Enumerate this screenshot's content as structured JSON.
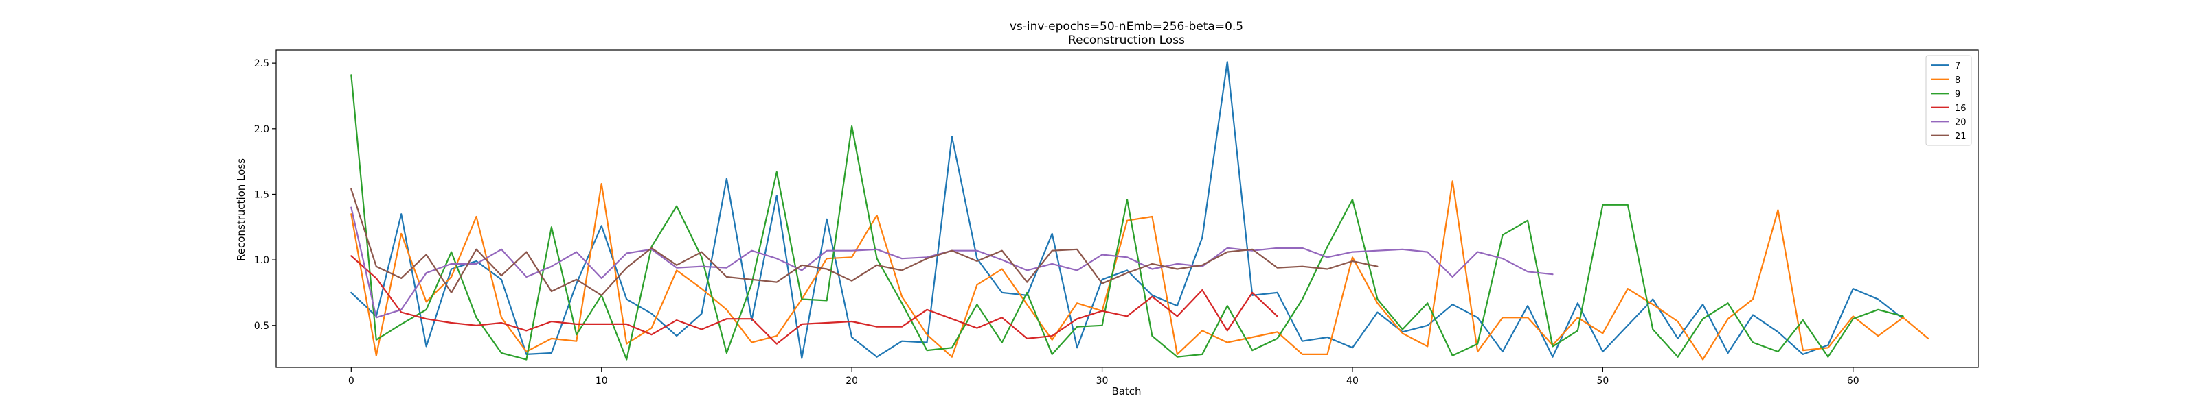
{
  "chart_data": {
    "type": "line",
    "title": "vs-inv-epochs=50-nEmb=256-beta=0.5",
    "subtitle": "Reconstruction Loss",
    "xlabel": "Batch",
    "ylabel": "Reconstruction Loss",
    "xlim": [
      -3,
      65
    ],
    "ylim": [
      0.18,
      2.6
    ],
    "xticks": [
      0,
      10,
      20,
      30,
      40,
      50,
      60
    ],
    "yticks": [
      0.5,
      1.0,
      1.5,
      2.0,
      2.5
    ],
    "ytick_labels": [
      "0.5",
      "1.0",
      "1.5",
      "2.0",
      "2.5"
    ],
    "grid": false,
    "legend_position": "upper right",
    "series": [
      {
        "name": "7",
        "color": "#1f77b4",
        "values": [
          0.75,
          0.57,
          1.35,
          0.34,
          0.93,
          0.99,
          0.85,
          0.28,
          0.29,
          0.82,
          1.26,
          0.7,
          0.59,
          0.42,
          0.59,
          1.62,
          0.54,
          1.49,
          0.25,
          1.31,
          0.41,
          0.26,
          0.38,
          0.37,
          1.94,
          1.01,
          0.75,
          0.73,
          1.2,
          0.33,
          0.85,
          0.92,
          0.73,
          0.65,
          1.17,
          2.51,
          0.73,
          0.75,
          0.38,
          0.41,
          0.33,
          0.6,
          0.45,
          0.5,
          0.66,
          0.56,
          0.3,
          0.65,
          0.26,
          0.67,
          0.3,
          0.5,
          0.7,
          0.4,
          0.66,
          0.29,
          0.58,
          0.45,
          0.28,
          0.35,
          0.78,
          0.7,
          0.55
        ]
      },
      {
        "name": "8",
        "color": "#ff7f0e",
        "values": [
          1.35,
          0.27,
          1.2,
          0.68,
          0.87,
          1.33,
          0.56,
          0.3,
          0.4,
          0.38,
          1.58,
          0.36,
          0.48,
          0.92,
          0.78,
          0.62,
          0.37,
          0.42,
          0.7,
          1.01,
          1.02,
          1.34,
          0.72,
          0.43,
          0.26,
          0.81,
          0.93,
          0.66,
          0.39,
          0.67,
          0.61,
          1.3,
          1.33,
          0.28,
          0.46,
          0.37,
          0.41,
          0.45,
          0.28,
          0.28,
          1.02,
          0.67,
          0.44,
          0.34,
          1.6,
          0.3,
          0.56,
          0.56,
          0.35,
          0.56,
          0.44,
          0.78,
          0.66,
          0.53,
          0.24,
          0.55,
          0.7,
          1.38,
          0.31,
          0.33,
          0.57,
          0.42,
          0.56,
          0.4
        ]
      },
      {
        "name": "9",
        "color": "#2ca02c",
        "values": [
          2.41,
          0.39,
          0.51,
          0.62,
          1.06,
          0.56,
          0.29,
          0.24,
          1.25,
          0.43,
          0.73,
          0.24,
          1.1,
          1.41,
          1.02,
          0.29,
          0.82,
          1.67,
          0.7,
          0.69,
          2.02,
          1.01,
          0.67,
          0.31,
          0.33,
          0.66,
          0.37,
          0.75,
          0.28,
          0.49,
          0.5,
          1.46,
          0.42,
          0.26,
          0.28,
          0.65,
          0.31,
          0.4,
          0.7,
          1.1,
          1.46,
          0.7,
          0.47,
          0.67,
          0.27,
          0.36,
          1.19,
          1.3,
          0.34,
          0.46,
          1.42,
          1.42,
          0.47,
          0.26,
          0.55,
          0.67,
          0.37,
          0.3,
          0.54,
          0.26,
          0.55,
          0.62,
          0.57
        ]
      },
      {
        "name": "16",
        "color": "#d62728",
        "values": [
          1.03,
          0.86,
          0.6,
          0.55,
          0.52,
          0.5,
          0.52,
          0.46,
          0.53,
          0.51,
          0.51,
          0.51,
          0.43,
          0.54,
          0.47,
          0.55,
          0.55,
          0.36,
          0.51,
          0.52,
          0.53,
          0.49,
          0.49,
          0.62,
          0.55,
          0.48,
          0.56,
          0.4,
          0.42,
          0.55,
          0.61,
          0.57,
          0.72,
          0.57,
          0.77,
          0.46,
          0.75,
          0.57
        ]
      },
      {
        "name": "20",
        "color": "#9467bd",
        "values": [
          1.4,
          0.56,
          0.62,
          0.9,
          0.97,
          0.97,
          1.08,
          0.87,
          0.95,
          1.06,
          0.86,
          1.05,
          1.08,
          0.94,
          0.95,
          0.94,
          1.07,
          1.01,
          0.92,
          1.07,
          1.07,
          1.08,
          1.01,
          1.02,
          1.07,
          1.07,
          1.0,
          0.92,
          0.97,
          0.92,
          1.04,
          1.02,
          0.93,
          0.97,
          0.95,
          1.09,
          1.07,
          1.09,
          1.09,
          1.02,
          1.06,
          1.07,
          1.08,
          1.06,
          0.87,
          1.06,
          1.01,
          0.91,
          0.89
        ]
      },
      {
        "name": "21",
        "color": "#8c564b",
        "values": [
          1.54,
          0.95,
          0.86,
          1.04,
          0.75,
          1.08,
          0.88,
          1.06,
          0.76,
          0.85,
          0.73,
          0.94,
          1.09,
          0.96,
          1.06,
          0.87,
          0.85,
          0.83,
          0.96,
          0.93,
          0.84,
          0.96,
          0.92,
          1.01,
          1.07,
          0.99,
          1.07,
          0.83,
          1.07,
          1.08,
          0.82,
          0.9,
          0.97,
          0.93,
          0.96,
          1.06,
          1.08,
          0.94,
          0.95,
          0.93,
          0.99,
          0.95
        ]
      }
    ]
  }
}
